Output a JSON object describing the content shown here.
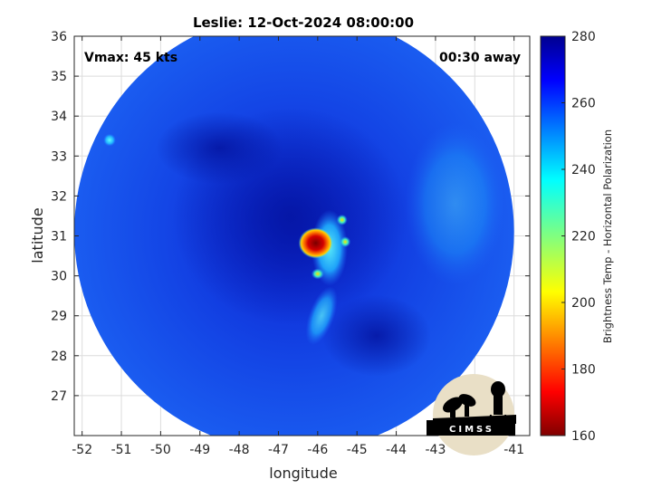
{
  "chart_data": {
    "type": "heatmap",
    "title": "Leslie: 12-Oct-2024 08:00:00",
    "xlabel": "longitude",
    "ylabel": "latitude",
    "xlim": [
      -52.2,
      -40.6
    ],
    "ylim": [
      26,
      36
    ],
    "x_ticks": [
      "-52",
      "-51",
      "-50",
      "-49",
      "-48",
      "-47",
      "-46",
      "-45",
      "-44",
      "-43",
      "-42",
      "-41"
    ],
    "y_ticks": [
      "27",
      "28",
      "29",
      "30",
      "31",
      "32",
      "33",
      "34",
      "35",
      "36"
    ],
    "x_tick_values": [
      -52,
      -51,
      -50,
      -49,
      -48,
      -47,
      -46,
      -45,
      -44,
      -43,
      -42,
      -41
    ],
    "y_tick_values": [
      27,
      28,
      29,
      30,
      31,
      32,
      33,
      34,
      35,
      36
    ],
    "grid": true,
    "annotations": {
      "vmax": "Vmax: 45 kts",
      "away": "00:30 away"
    },
    "colorbar": {
      "label": "Brightness Temp - Horizontal Polarization",
      "range": [
        160,
        280
      ],
      "ticks": [
        "160",
        "180",
        "200",
        "220",
        "240",
        "260",
        "280"
      ],
      "tick_values": [
        160,
        180,
        200,
        220,
        240,
        260,
        280
      ],
      "colormap": "jet"
    },
    "field": {
      "center_lon": -46.6,
      "center_lat": 31.1,
      "radius_deg_lon": 5.6,
      "background_temp": 258,
      "features": [
        {
          "lon": -46.05,
          "lat": 30.82,
          "temp": 165
        },
        {
          "lon": -46.0,
          "lat": 30.05,
          "temp": 215
        },
        {
          "lon": -45.38,
          "lat": 31.4,
          "temp": 225
        },
        {
          "lon": -45.3,
          "lat": 30.85,
          "temp": 228
        },
        {
          "lon": -51.3,
          "lat": 33.4,
          "temp": 232
        }
      ]
    }
  },
  "logo": {
    "text": "CIMSS"
  }
}
